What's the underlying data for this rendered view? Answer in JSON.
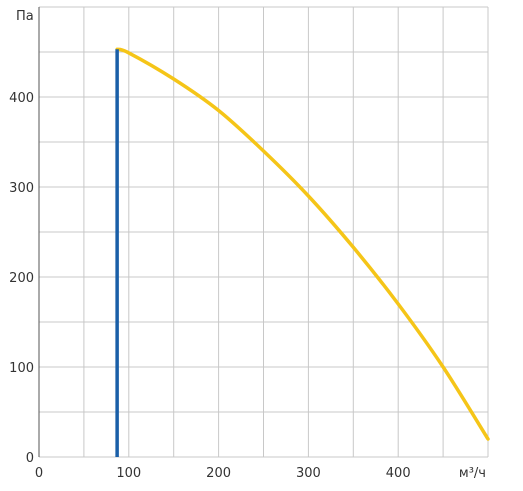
{
  "chart_data": {
    "type": "line",
    "title": "",
    "xlabel": "м³/ч",
    "ylabel": "Па",
    "xlim": [
      0,
      500
    ],
    "ylim": [
      0,
      500
    ],
    "grid": true,
    "x_ticks": [
      0,
      100,
      200,
      300,
      400
    ],
    "x_grid": [
      0,
      50,
      100,
      150,
      200,
      250,
      300,
      350,
      400,
      450,
      500
    ],
    "y_ticks": [
      0,
      100,
      200,
      300,
      400
    ],
    "y_grid": [
      0,
      50,
      100,
      150,
      200,
      250,
      300,
      350,
      400,
      450,
      500
    ],
    "series": [
      {
        "color": "#f5c518",
        "x": [
          87,
          100,
          150,
          200,
          250,
          300,
          350,
          400,
          450,
          500
        ],
        "y": [
          453,
          449,
          420,
          385,
          340,
          290,
          233,
          170,
          100,
          20
        ]
      },
      {
        "color": "#1a5fa8",
        "x": [
          87,
          87
        ],
        "y": [
          0,
          453
        ]
      }
    ]
  }
}
